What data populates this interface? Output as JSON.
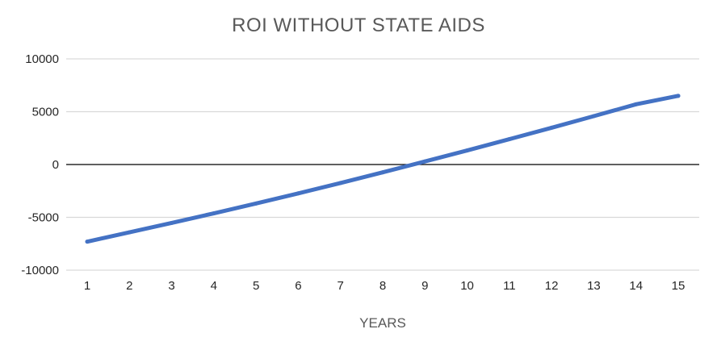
{
  "chart_data": {
    "type": "line",
    "title": "ROI WITHOUT STATE AIDS",
    "xlabel": "YEARS",
    "ylabel": "",
    "categories": [
      "1",
      "2",
      "3",
      "4",
      "5",
      "6",
      "7",
      "8",
      "9",
      "10",
      "11",
      "12",
      "13",
      "14",
      "15"
    ],
    "series": [
      {
        "values": [
          -7300,
          -6420,
          -5530,
          -4620,
          -3690,
          -2730,
          -1750,
          -740,
          290,
          1330,
          2400,
          3480,
          4580,
          5700,
          6500
        ],
        "color": "#4472C4"
      }
    ],
    "ylim": [
      -10000,
      10000
    ],
    "yticks": [
      "10000",
      "5000",
      "0",
      "-5000",
      "-10000"
    ],
    "grid": true,
    "legend": "none"
  }
}
